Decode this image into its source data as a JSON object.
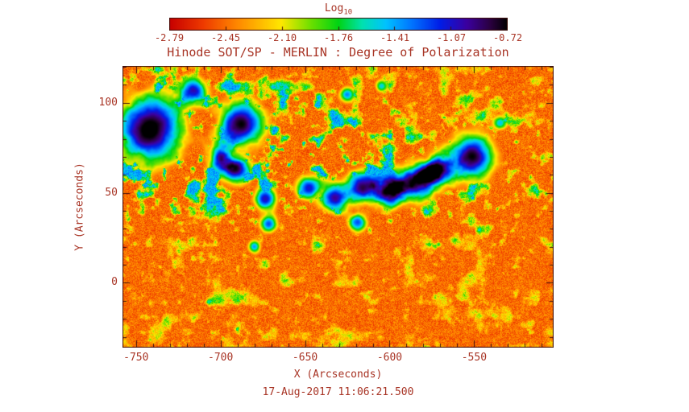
{
  "colors": {
    "text": "#a83425",
    "frame": "#40100c",
    "background": "#ffffff"
  },
  "chart_data": {
    "type": "heatmap",
    "title": "Hinode SOT/SP - MERLIN : Degree of Polarization",
    "xlabel": "X (Arcseconds)",
    "ylabel": "Y (Arcseconds)",
    "timestamp_caption": "17-Aug-2017 11:06:21.500",
    "colorbar_label_base": "Log",
    "colorbar_label_sub": "10",
    "colorbar_ticks": [
      "-2.79",
      "-2.45",
      "-2.10",
      "-1.76",
      "-1.41",
      "-1.07",
      "-0.72"
    ],
    "value_range_log10": [
      -2.79,
      -0.72
    ],
    "x_range": [
      -758,
      -503
    ],
    "y_range": [
      -36,
      120.5
    ],
    "x_major_ticks": [
      -750,
      -700,
      -650,
      -600,
      -550
    ],
    "y_major_ticks": [
      0,
      50,
      100
    ],
    "minor_tick_step": 10,
    "colormap": [
      [
        0.0,
        "#c80000"
      ],
      [
        0.1,
        "#ef3b00"
      ],
      [
        0.2,
        "#ff8800"
      ],
      [
        0.33,
        "#ffe800"
      ],
      [
        0.42,
        "#6ae000"
      ],
      [
        0.5,
        "#00d414"
      ],
      [
        0.57,
        "#00e2b0"
      ],
      [
        0.64,
        "#00c3ff"
      ],
      [
        0.72,
        "#0072ff"
      ],
      [
        0.8,
        "#001ee8"
      ],
      [
        0.88,
        "#3c00a0"
      ],
      [
        0.95,
        "#2a0040"
      ],
      [
        1.0,
        "#000000"
      ]
    ],
    "features": {
      "description": "quiet-sun red/orange grain with green network speckle; high-polarization sunspot/plage regions as blue-to-black blobs",
      "background_log10": -2.6,
      "blobs": [
        {
          "x": 0.062,
          "y": 0.225,
          "r": 0.085,
          "s": 1.05
        },
        {
          "x": 0.165,
          "y": 0.085,
          "r": 0.032,
          "s": 0.78
        },
        {
          "x": 0.275,
          "y": 0.205,
          "r": 0.055,
          "s": 1.0
        },
        {
          "x": 0.225,
          "y": 0.325,
          "r": 0.03,
          "s": 0.8
        },
        {
          "x": 0.262,
          "y": 0.365,
          "r": 0.035,
          "s": 0.92
        },
        {
          "x": 0.33,
          "y": 0.47,
          "r": 0.028,
          "s": 0.85
        },
        {
          "x": 0.338,
          "y": 0.56,
          "r": 0.022,
          "s": 0.75
        },
        {
          "x": 0.305,
          "y": 0.64,
          "r": 0.018,
          "s": 0.68
        },
        {
          "x": 0.43,
          "y": 0.43,
          "r": 0.03,
          "s": 0.8
        },
        {
          "x": 0.49,
          "y": 0.465,
          "r": 0.035,
          "s": 0.85
        },
        {
          "x": 0.545,
          "y": 0.555,
          "r": 0.024,
          "s": 0.72
        },
        {
          "x": 0.555,
          "y": 0.43,
          "r": 0.04,
          "s": 0.9
        },
        {
          "x": 0.62,
          "y": 0.445,
          "r": 0.038,
          "s": 0.88
        },
        {
          "x": 0.675,
          "y": 0.415,
          "r": 0.045,
          "s": 0.92
        },
        {
          "x": 0.73,
          "y": 0.37,
          "r": 0.04,
          "s": 0.9
        },
        {
          "x": 0.81,
          "y": 0.32,
          "r": 0.055,
          "s": 1.0
        },
        {
          "x": 0.52,
          "y": 0.1,
          "r": 0.02,
          "s": 0.7
        },
        {
          "x": 0.6,
          "y": 0.07,
          "r": 0.017,
          "s": 0.62
        },
        {
          "x": 0.875,
          "y": 0.2,
          "r": 0.018,
          "s": 0.6
        }
      ],
      "noise": {
        "grain": 0.13,
        "speckle_scale": 0.045
      }
    }
  }
}
